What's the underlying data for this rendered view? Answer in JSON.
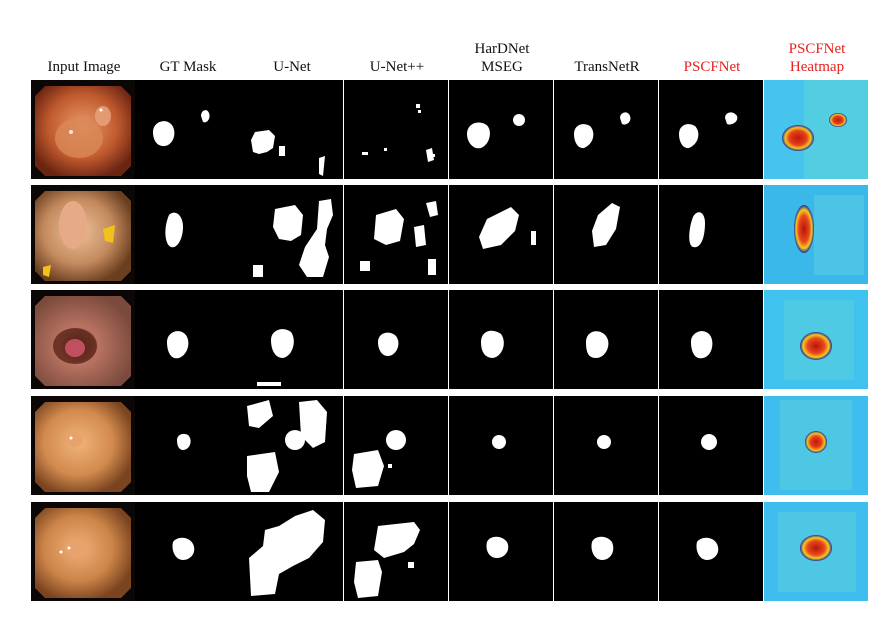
{
  "figure": {
    "columns": [
      {
        "id": "input",
        "label_lines": [
          "Input Image"
        ],
        "accent": "#111111"
      },
      {
        "id": "gt",
        "label_lines": [
          "GT Mask"
        ],
        "accent": "#111111"
      },
      {
        "id": "unet",
        "label_lines": [
          "U-Net"
        ],
        "accent": "#111111"
      },
      {
        "id": "unetpp",
        "label_lines": [
          "U-Net++"
        ],
        "accent": "#111111"
      },
      {
        "id": "hardnet",
        "label_lines": [
          "HarDNet",
          "MSEG"
        ],
        "accent": "#111111"
      },
      {
        "id": "transnetr",
        "label_lines": [
          "TransNetR"
        ],
        "accent": "#111111"
      },
      {
        "id": "pscfnet",
        "label_lines": [
          "PSCFNet"
        ],
        "accent": "#e8211f"
      },
      {
        "id": "heatmap",
        "label_lines": [
          "PSCFNet",
          "Heatmap"
        ],
        "accent": "#e8211f"
      }
    ],
    "row_count": 5,
    "colors": {
      "mask_background": "#000000",
      "mask_foreground": "#ffffff",
      "heatmap_background": "#3fc6ee",
      "heatmap_hot": "#d01a10"
    }
  }
}
